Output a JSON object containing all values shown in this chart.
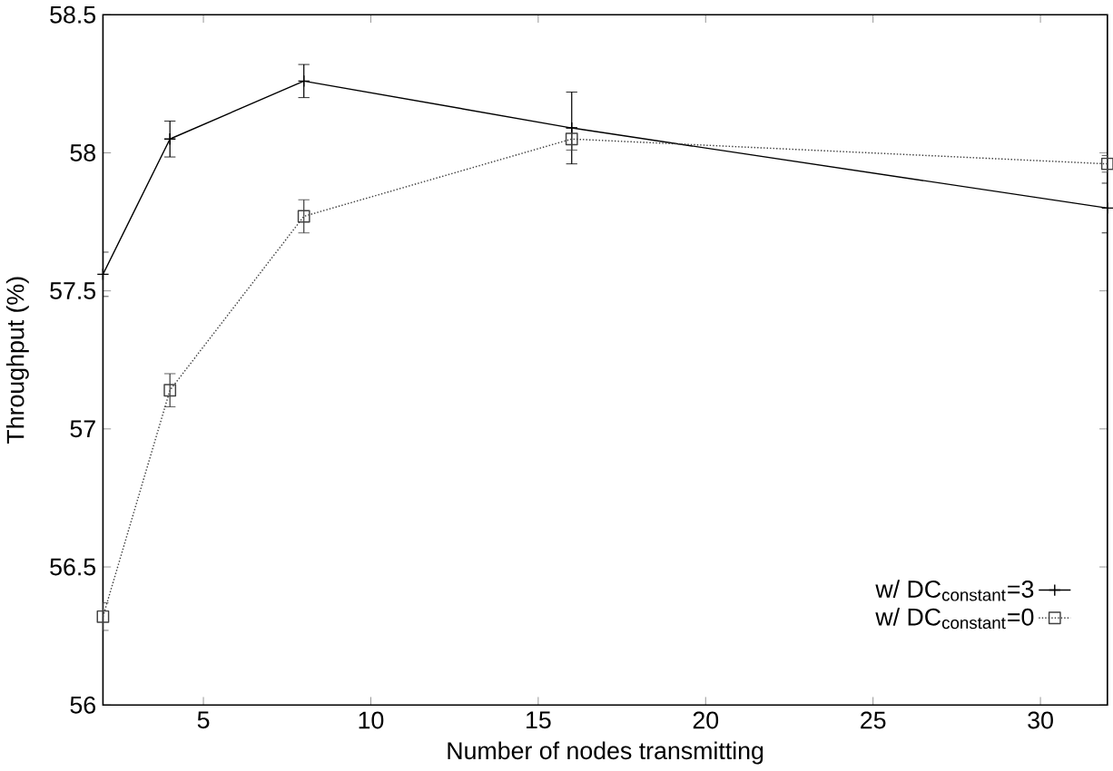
{
  "chart_data": {
    "type": "line",
    "xlabel": "Number of nodes transmitting",
    "ylabel": "Throughput (%)",
    "x": [
      2,
      4,
      8,
      16,
      32
    ],
    "series": [
      {
        "name": "w/ DC$_{constant}$=3",
        "color": "#000000",
        "marker": "cross",
        "line_style": "solid",
        "values": [
          57.56,
          58.05,
          58.26,
          58.09,
          57.8
        ],
        "errors": [
          0.08,
          0.065,
          0.06,
          0.13,
          0.09
        ]
      },
      {
        "name": "w/ DC$_{constant}$=0",
        "color": "#404040",
        "marker": "square",
        "line_style": "dotted",
        "values": [
          56.32,
          57.14,
          57.77,
          58.05,
          57.96
        ],
        "errors": [
          0.05,
          0.06,
          0.06,
          0.04,
          0.03
        ]
      }
    ],
    "xlim": [
      2,
      32
    ],
    "ylim": [
      56,
      58.5
    ],
    "xticks": [
      5,
      10,
      15,
      20,
      25,
      30
    ],
    "yticks": [
      56,
      56.5,
      57,
      57.5,
      58,
      58.5
    ],
    "grid": false,
    "legend": "bottom right"
  }
}
